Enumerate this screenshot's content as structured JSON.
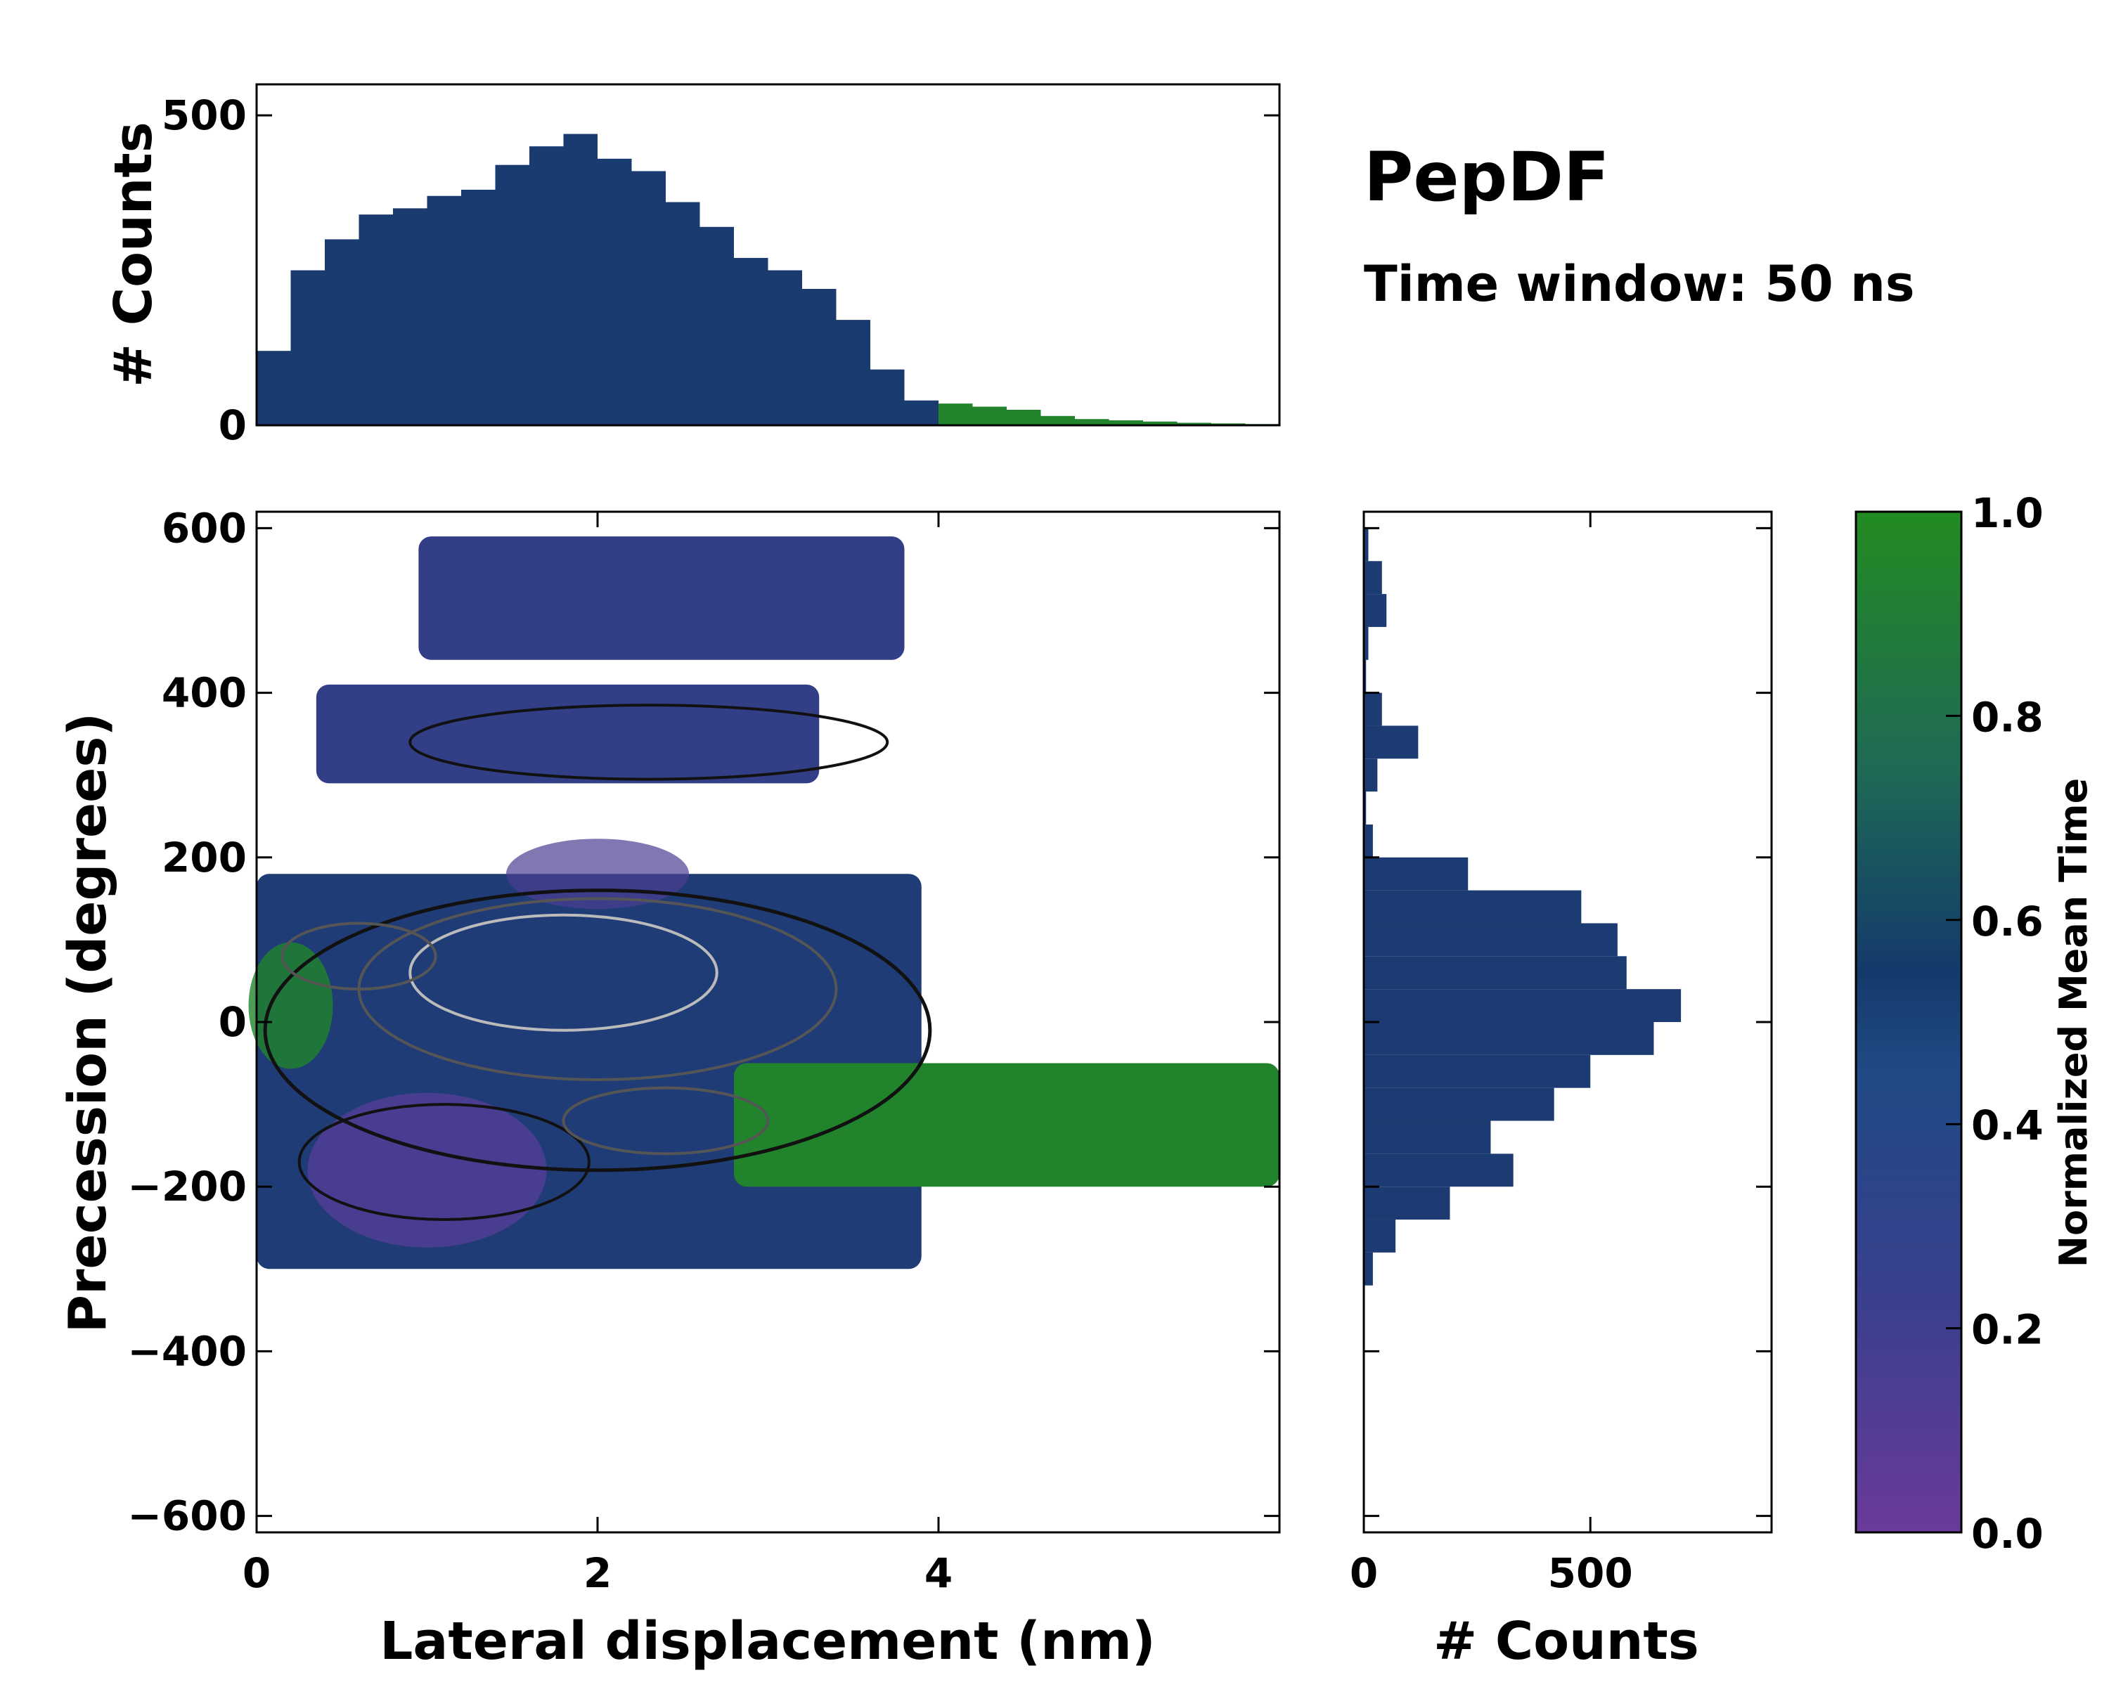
{
  "figure": {
    "title": "PepDF",
    "subtitle": "Time window: 50 ns"
  },
  "colors": {
    "cmap_low": "#6a3a9c",
    "cmap_mid1": "#3b3f8f",
    "cmap_mid2": "#143a6b",
    "cmap_mid3": "#1f6a55",
    "cmap_high": "#228b22",
    "contour_dark": "#111111",
    "contour_mid": "#555555",
    "contour_light": "#bbbbbb"
  },
  "chart_data": [
    {
      "id": "main",
      "type": "heatmap",
      "title": "",
      "xlabel": "Lateral displacement (nm)",
      "ylabel": "Precession (degrees)",
      "xlim": [
        0,
        6
      ],
      "ylim": [
        -620,
        620
      ],
      "xticks": [
        0,
        2,
        4
      ],
      "xtick_labels": [
        "0",
        "2",
        "4"
      ],
      "yticks": [
        -600,
        -400,
        -200,
        0,
        200,
        400,
        600
      ],
      "ytick_labels": [
        "−600",
        "−400",
        "−200",
        "0",
        "200",
        "400",
        "600"
      ],
      "color_value": "Normalized Mean Time",
      "description_regions": [
        {
          "name": "upper band",
          "x": [
            0.95,
            3.8
          ],
          "y": [
            440,
            590
          ],
          "value": 0.3
        },
        {
          "name": "second band",
          "x": [
            0.35,
            3.3
          ],
          "y": [
            290,
            410
          ],
          "value": 0.3
        },
        {
          "name": "core",
          "x": [
            0,
            3.9
          ],
          "y": [
            -300,
            180
          ],
          "value": 0.45
        },
        {
          "name": "green tail",
          "x": [
            2.8,
            6
          ],
          "y": [
            -200,
            -50
          ],
          "value": 0.95
        }
      ]
    },
    {
      "id": "top-hist",
      "type": "bar",
      "xlabel": "",
      "ylabel": "# Counts",
      "xlim": [
        0,
        6
      ],
      "ylim": [
        0,
        550
      ],
      "yticks": [
        0,
        500
      ],
      "ytick_labels": [
        "0",
        "500"
      ],
      "bin_centers": [
        0.1,
        0.3,
        0.5,
        0.7,
        0.9,
        1.1,
        1.3,
        1.5,
        1.7,
        1.9,
        2.1,
        2.3,
        2.5,
        2.7,
        2.9,
        3.1,
        3.3,
        3.5,
        3.7,
        3.9,
        4.1,
        4.3,
        4.5,
        4.7,
        4.9,
        5.1,
        5.3,
        5.5,
        5.7,
        5.9
      ],
      "values": [
        120,
        250,
        300,
        340,
        350,
        370,
        380,
        420,
        450,
        470,
        430,
        410,
        360,
        320,
        270,
        250,
        220,
        170,
        90,
        40,
        35,
        30,
        25,
        15,
        10,
        8,
        6,
        4,
        3,
        2
      ]
    },
    {
      "id": "right-hist",
      "type": "bar",
      "orientation": "horizontal",
      "xlabel": "# Counts",
      "ylabel": "",
      "xlim": [
        0,
        900
      ],
      "ylim": [
        -620,
        620
      ],
      "xticks": [
        0,
        500
      ],
      "xtick_labels": [
        "0",
        "500"
      ],
      "bin_centers": [
        -300,
        -260,
        -220,
        -180,
        -140,
        -100,
        -60,
        -20,
        20,
        60,
        100,
        140,
        180,
        220,
        260,
        300,
        340,
        380,
        420,
        460,
        500,
        540,
        580
      ],
      "values": [
        20,
        70,
        190,
        330,
        280,
        420,
        500,
        640,
        700,
        580,
        560,
        480,
        230,
        20,
        5,
        30,
        120,
        40,
        5,
        10,
        50,
        40,
        10
      ]
    },
    {
      "id": "colorbar",
      "type": "colorbar",
      "label": "Normalized Mean Time",
      "range": [
        0,
        1
      ],
      "ticks": [
        0,
        0.2,
        0.4,
        0.6,
        0.8,
        1.0
      ],
      "tick_labels": [
        "0.0",
        "0.2",
        "0.4",
        "0.6",
        "0.8",
        "1.0"
      ]
    }
  ]
}
